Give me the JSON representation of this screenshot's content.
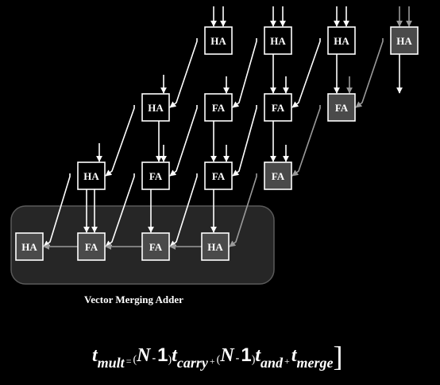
{
  "colors": {
    "background": "#000000",
    "cell_fill": "#000000",
    "merge_cell_fill": "#4a4a4a",
    "cell_stroke": "#ffffff",
    "wire": "#ffffff",
    "merge_wire": "#9a9a9a",
    "region_fill": "#262626",
    "region_stroke": "#5a5a5a"
  },
  "cells": [
    {
      "id": "r0c0",
      "label": "HA",
      "merge": false
    },
    {
      "id": "r0c1",
      "label": "HA",
      "merge": false
    },
    {
      "id": "r0c2",
      "label": "HA",
      "merge": false
    },
    {
      "id": "r0c3",
      "label": "HA",
      "merge": true
    },
    {
      "id": "r1c0",
      "label": "HA",
      "merge": false
    },
    {
      "id": "r1c1",
      "label": "FA",
      "merge": false
    },
    {
      "id": "r1c2",
      "label": "FA",
      "merge": false
    },
    {
      "id": "r1c3",
      "label": "FA",
      "merge": true
    },
    {
      "id": "r2c0",
      "label": "HA",
      "merge": false
    },
    {
      "id": "r2c1",
      "label": "FA",
      "merge": false
    },
    {
      "id": "r2c2",
      "label": "FA",
      "merge": false
    },
    {
      "id": "r2c3",
      "label": "FA",
      "merge": true
    },
    {
      "id": "r3c0",
      "label": "HA",
      "merge": true
    },
    {
      "id": "r3c1",
      "label": "FA",
      "merge": true
    },
    {
      "id": "r3c2",
      "label": "FA",
      "merge": true
    },
    {
      "id": "r3c3",
      "label": "HA",
      "merge": true
    }
  ],
  "region_label": "Vector Merging Adder",
  "formula": {
    "lhs": "t",
    "lhs_sub": "mult",
    "eq": "=",
    "open_paren": "(",
    "var": "N",
    "minus": "-",
    "one": "1",
    "close_paren": ")",
    "t": "t",
    "carry_sub": "carry",
    "plus": "+",
    "and_sub": "and",
    "merge_sub": "merge",
    "close_bracket": "]"
  }
}
